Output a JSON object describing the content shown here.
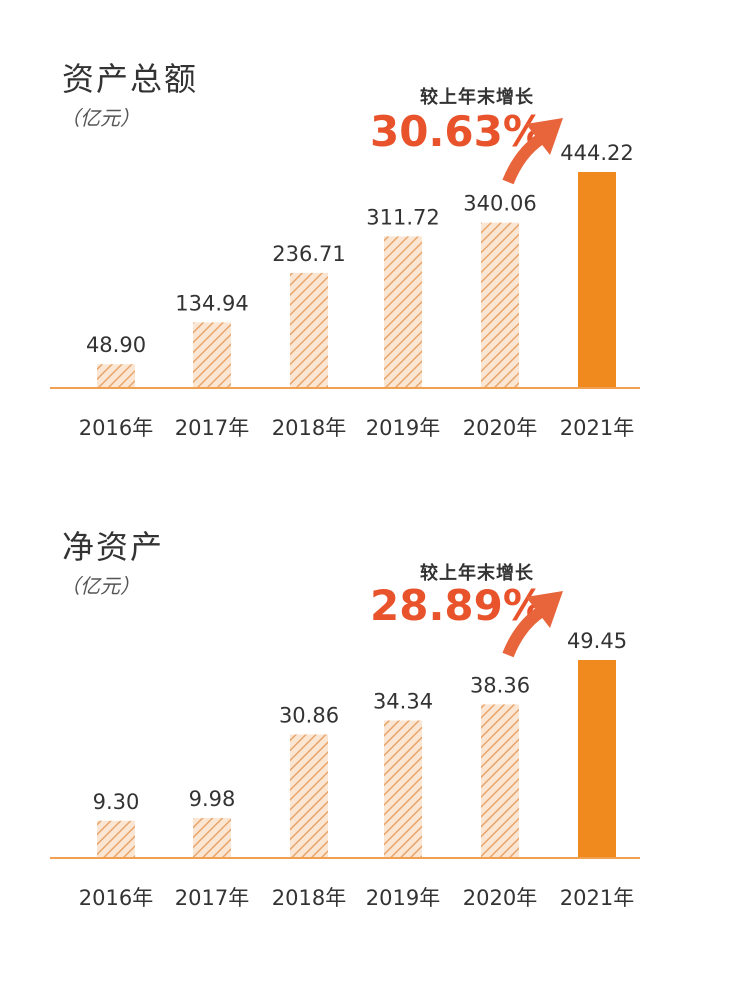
{
  "chart_data": [
    {
      "type": "bar",
      "title": "资产总额",
      "unit": "（亿元）",
      "categories": [
        "2016年",
        "2017年",
        "2018年",
        "2019年",
        "2020年",
        "2021年"
      ],
      "values": [
        48.9,
        134.94,
        236.71,
        311.72,
        340.06,
        444.22
      ],
      "value_labels": [
        "48.90",
        "134.94",
        "236.71",
        "311.72",
        "340.06",
        "444.22"
      ],
      "growth_label": "较上年末增长",
      "growth_value": "30.63%",
      "highlight_index": 5
    },
    {
      "type": "bar",
      "title": "净资产",
      "unit": "（亿元）",
      "categories": [
        "2016年",
        "2017年",
        "2018年",
        "2019年",
        "2020年",
        "2021年"
      ],
      "values": [
        9.3,
        9.98,
        30.86,
        34.34,
        38.36,
        49.45
      ],
      "value_labels": [
        "9.30",
        "9.98",
        "30.86",
        "34.34",
        "38.36",
        "49.45"
      ],
      "growth_label": "较上年末增长",
      "growth_value": "28.89%",
      "highlight_index": 5
    }
  ],
  "colors": {
    "bar_hatch": "#e8a56c",
    "bar_bg": "#fbe6d3",
    "bar_highlight": "#f08a1e",
    "baseline": "#f0a050",
    "growth": "#e8532b",
    "arrow": "#e8643a"
  }
}
